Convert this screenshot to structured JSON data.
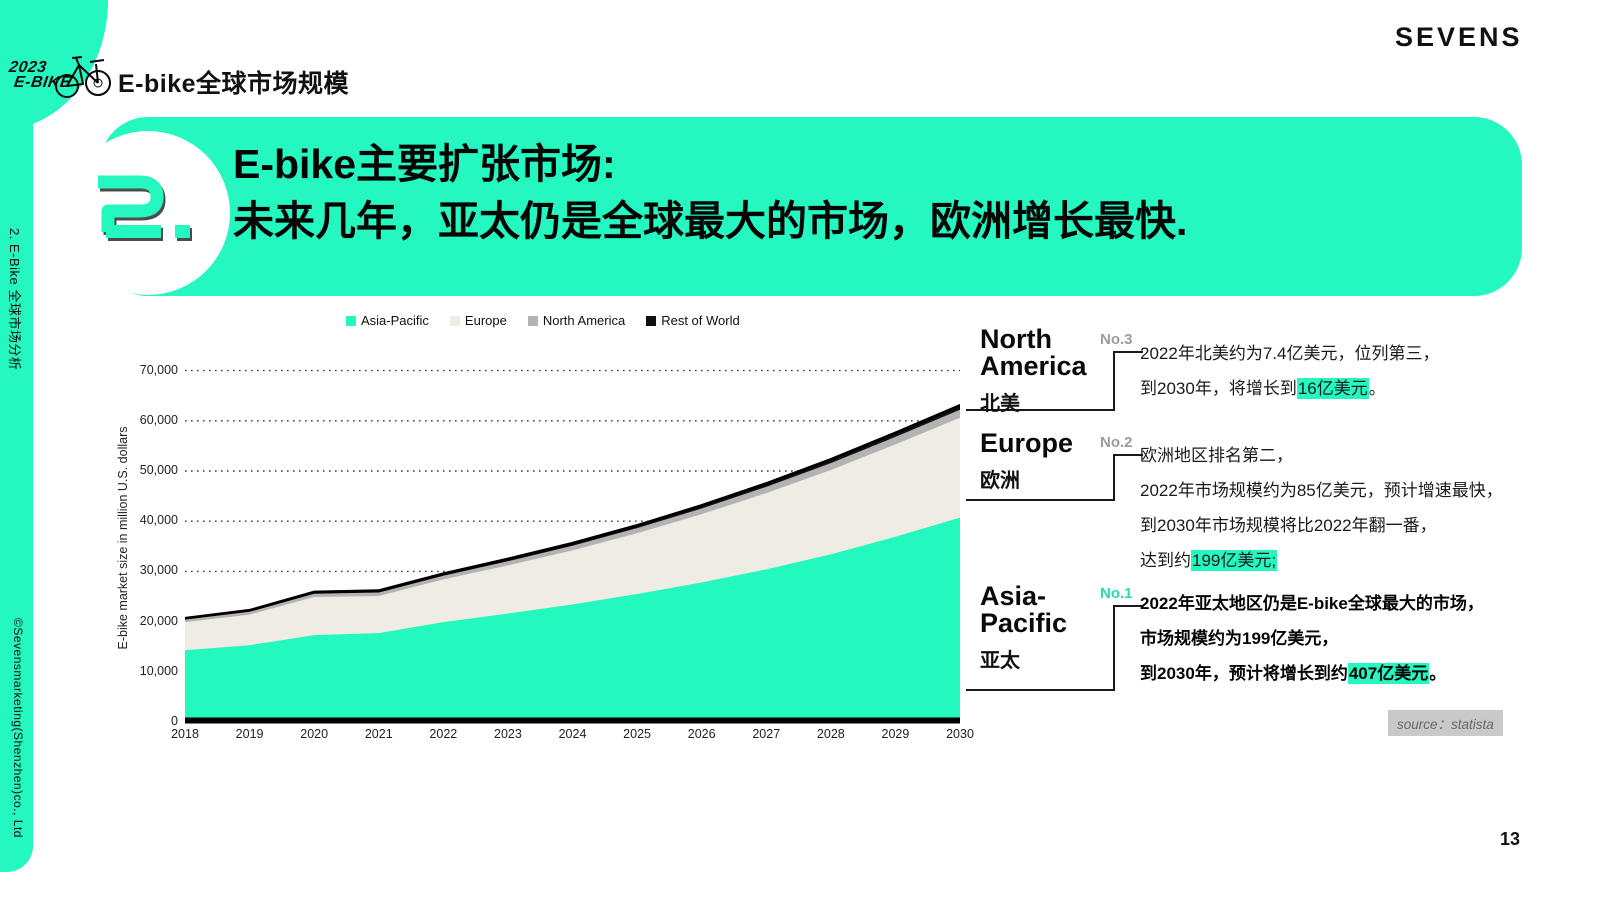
{
  "header": {
    "logo_year": "2023",
    "logo_brand": "E-BIKE",
    "title": "E-bike全球市场规模",
    "brand": "SEVENS"
  },
  "sidebar": {
    "top_label": "2. E-Bike 全球市场分析",
    "bottom_label": "©Sevensmarketing(Shenzhen)co., Ltd"
  },
  "banner": {
    "number": "2.",
    "line1": "E-bike主要扩张市场:",
    "line2": "未来几年，亚太仍是全球最大的市场，欧洲增长最快."
  },
  "chart_data": {
    "type": "area",
    "stacked": true,
    "x": [
      2018,
      2019,
      2020,
      2021,
      2022,
      2023,
      2024,
      2025,
      2026,
      2027,
      2028,
      2029,
      2030
    ],
    "series": [
      {
        "name": "Asia-Pacific",
        "color": "#23f8be",
        "values": [
          14300,
          15300,
          17300,
          17700,
          19900,
          21600,
          23400,
          25500,
          27800,
          30400,
          33400,
          36900,
          40700
        ]
      },
      {
        "name": "Europe",
        "color": "#efece4",
        "values": [
          5600,
          6100,
          7600,
          7400,
          8500,
          9600,
          10800,
          12100,
          13600,
          15200,
          16800,
          18400,
          19900
        ]
      },
      {
        "name": "North America",
        "color": "#b3b3b3",
        "values": [
          500,
          550,
          640,
          690,
          740,
          830,
          920,
          1020,
          1130,
          1250,
          1380,
          1490,
          1600
        ]
      },
      {
        "name": "Rest of World",
        "color": "#111111",
        "values": [
          250,
          280,
          330,
          350,
          380,
          420,
          470,
          520,
          580,
          640,
          710,
          780,
          850
        ]
      }
    ],
    "ylabel": "E-bike market size in million U.S. dollars",
    "ylim": [
      0,
      70000
    ],
    "yticks": [
      0,
      10000,
      20000,
      30000,
      40000,
      50000,
      60000,
      70000
    ],
    "ytick_labels": [
      "0",
      "10,000",
      "20,000",
      "30,000",
      "40,000",
      "50,000",
      "60,000",
      "70,000"
    ],
    "grid": "dotted-horizontal",
    "legend_position": "top"
  },
  "annotations": [
    {
      "region_en": "North America",
      "region_zh": "北美",
      "rank": "No.3",
      "lines": [
        {
          "pre": "2022年北美约为7.4亿美元，位列第三，",
          "hl": "",
          "post": ""
        },
        {
          "pre": "到2030年，将增长到",
          "hl": "16亿美元",
          "post": "。"
        }
      ]
    },
    {
      "region_en": "Europe",
      "region_zh": "欧洲",
      "rank": "No.2",
      "lines": [
        {
          "pre": "欧洲地区排名第二，",
          "hl": "",
          "post": ""
        },
        {
          "pre": "2022年市场规模约为85亿美元，预计增速最快，",
          "hl": "",
          "post": ""
        },
        {
          "pre": "到2030年市场规模将比2022年翻一番，",
          "hl": "",
          "post": ""
        },
        {
          "pre": "达到约",
          "hl": "199亿美元;",
          "post": ""
        }
      ]
    },
    {
      "region_en": "Asia-Pacific",
      "region_zh": "亚太",
      "rank": "No.1",
      "lines": [
        {
          "pre": "2022年亚太地区仍是E-bike全球最大的市场，",
          "hl": "",
          "post": ""
        },
        {
          "pre": "市场规模约为199亿美元，",
          "hl": "",
          "post": ""
        },
        {
          "pre": "到2030年，预计将增长到约",
          "hl": "407亿美元",
          "post": "。"
        }
      ]
    }
  ],
  "footer": {
    "source": "source：statista",
    "page": "13"
  },
  "colors": {
    "mint": "#24f7bf",
    "europe_area": "#efece4",
    "north_america_area": "#b3b3b3",
    "rest_of_world": "#111111",
    "rank_muted": "#9b9b9b",
    "source_bg": "#c9c9c9"
  }
}
